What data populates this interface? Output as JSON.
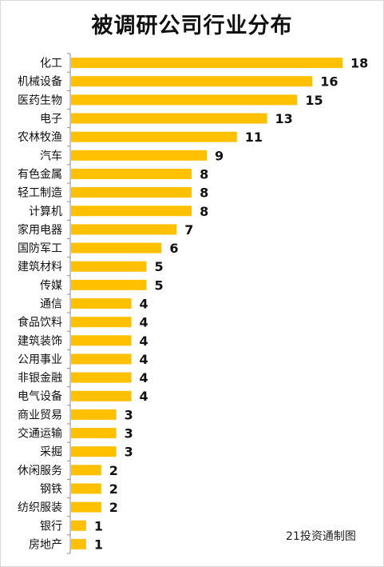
{
  "title": "被调研公司行业分布",
  "credit": "21投资通制图",
  "colors": {
    "bar": "#ffc000",
    "label": "#111111",
    "axis": "#8c8c8c"
  },
  "chart_data": {
    "type": "bar",
    "orientation": "horizontal",
    "title": "被调研公司行业分布",
    "categories": [
      "化工",
      "机械设备",
      "医药生物",
      "电子",
      "农林牧渔",
      "汽车",
      "有色金属",
      "轻工制造",
      "计算机",
      "家用电器",
      "国防军工",
      "建筑材料",
      "传媒",
      "通信",
      "食品饮料",
      "建筑装饰",
      "公用事业",
      "非银金融",
      "电气设备",
      "商业贸易",
      "交通运输",
      "采掘",
      "休闲服务",
      "钢铁",
      "纺织服装",
      "银行",
      "房地产"
    ],
    "values": [
      18,
      16,
      15,
      13,
      11,
      9,
      8,
      8,
      8,
      7,
      6,
      5,
      5,
      4,
      4,
      4,
      4,
      4,
      4,
      3,
      3,
      3,
      2,
      2,
      2,
      1,
      1
    ],
    "xlim": [
      0,
      18
    ],
    "data_labels": true,
    "grid": false,
    "legend": "none"
  }
}
